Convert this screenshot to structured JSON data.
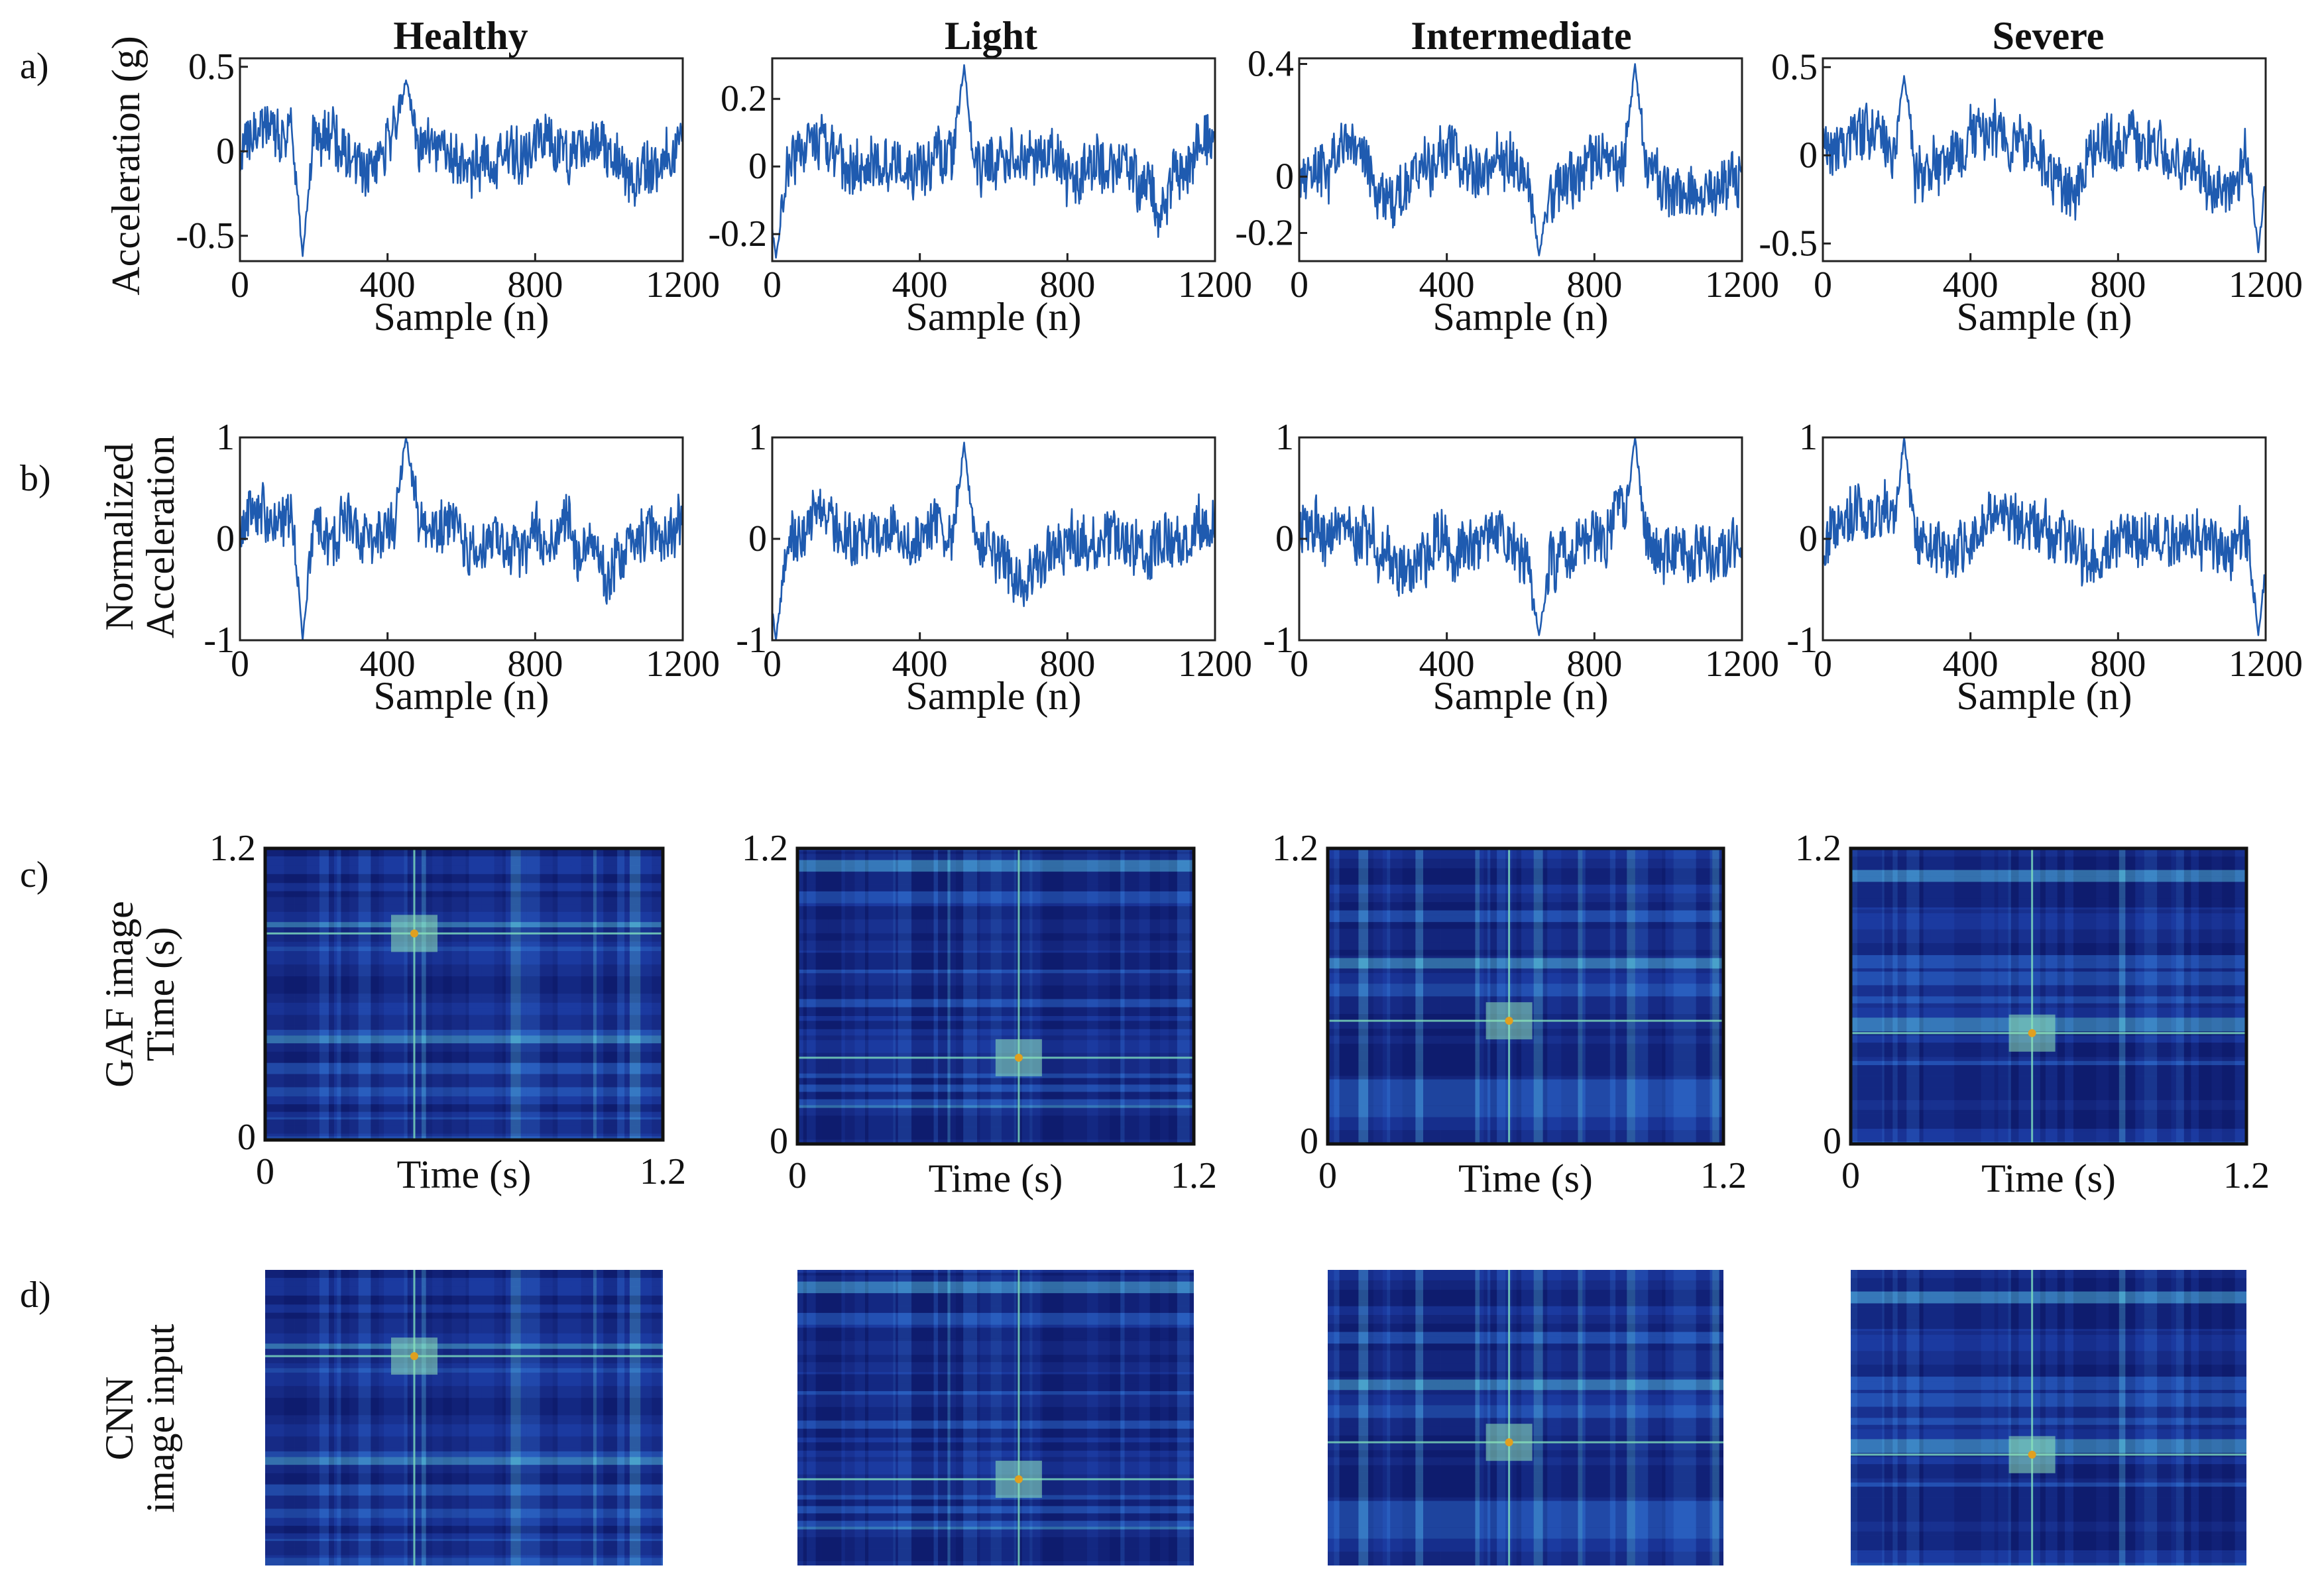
{
  "figure": {
    "row_labels": [
      "a)",
      "b)",
      "c)",
      "d)"
    ],
    "columns": [
      "Healthy",
      "Light",
      "Intermediate",
      "Severe"
    ],
    "ylabels": {
      "raw": "Acceleration (g)",
      "norm_line1": "Normalized",
      "norm_line2": "Acceleration",
      "gaf_line1": "GAF image",
      "gaf_line2": "Time (s)",
      "cnn_line1": "CNN",
      "cnn_line2": "image input"
    },
    "xlabels": {
      "sample": "Sample (n)",
      "time": "Time (s)"
    }
  },
  "colors": {
    "signal": "#1f5bb0",
    "colormap_low": "#0a1466",
    "colormap_mid": "#2a6fd6",
    "colormap_high": "#7fe0c0",
    "hotspot": "#e0a020"
  },
  "chart_data": [
    {
      "type": "line",
      "row": "a",
      "title": "Healthy",
      "xlabel": "Sample (n)",
      "ylabel": "Acceleration (g)",
      "xlim": [
        0,
        1200
      ],
      "ylim": [
        -0.65,
        0.55
      ],
      "xticks": [
        "0",
        "400",
        "800",
        "1200"
      ],
      "yticks": [
        "0.5",
        "0",
        "-0.5"
      ],
      "ytick_values": [
        0.5,
        0,
        -0.5
      ],
      "n_samples": 1200,
      "features": [
        {
          "at": 170,
          "value": -0.62
        },
        {
          "at": 450,
          "value": 0.42
        }
      ]
    },
    {
      "type": "line",
      "row": "a",
      "title": "Light",
      "xlabel": "Sample (n)",
      "ylabel": "",
      "xlim": [
        0,
        1200
      ],
      "ylim": [
        -0.28,
        0.32
      ],
      "xticks": [
        "0",
        "400",
        "800",
        "1200"
      ],
      "yticks": [
        "0.2",
        "0",
        "-0.2"
      ],
      "ytick_values": [
        0.2,
        0,
        -0.2
      ],
      "n_samples": 1200,
      "features": [
        {
          "at": 10,
          "value": -0.27
        },
        {
          "at": 520,
          "value": 0.3
        }
      ]
    },
    {
      "type": "line",
      "row": "a",
      "title": "Intermediate",
      "xlabel": "Sample (n)",
      "ylabel": "",
      "xlim": [
        0,
        1200
      ],
      "ylim": [
        -0.3,
        0.42
      ],
      "xticks": [
        "0",
        "400",
        "800",
        "1200"
      ],
      "yticks": [
        "0.4",
        "0",
        "-0.2"
      ],
      "ytick_values": [
        0.4,
        0,
        -0.2
      ],
      "n_samples": 1200,
      "features": [
        {
          "at": 910,
          "value": 0.4
        },
        {
          "at": 650,
          "value": -0.28
        }
      ]
    },
    {
      "type": "line",
      "row": "a",
      "title": "Severe",
      "xlabel": "Sample (n)",
      "ylabel": "",
      "xlim": [
        0,
        1200
      ],
      "ylim": [
        -0.6,
        0.55
      ],
      "xticks": [
        "0",
        "400",
        "800",
        "1200"
      ],
      "yticks": [
        "0.5",
        "0",
        "-0.5"
      ],
      "ytick_values": [
        0.5,
        0,
        -0.5
      ],
      "n_samples": 1200,
      "features": [
        {
          "at": 220,
          "value": 0.45
        },
        {
          "at": 1180,
          "value": -0.55
        }
      ]
    },
    {
      "type": "line",
      "row": "b",
      "title": "Healthy",
      "xlabel": "Sample (n)",
      "ylabel": "Normalized Acceleration",
      "xlim": [
        0,
        1200
      ],
      "ylim": [
        -1,
        1
      ],
      "xticks": [
        "0",
        "400",
        "800",
        "1200"
      ],
      "yticks": [
        "1",
        "0",
        "-1"
      ],
      "ytick_values": [
        1,
        0,
        -1
      ],
      "n_samples": 1200,
      "features": [
        {
          "at": 170,
          "value": -1
        },
        {
          "at": 450,
          "value": 1
        }
      ]
    },
    {
      "type": "line",
      "row": "b",
      "title": "Light",
      "xlabel": "Sample (n)",
      "ylabel": "",
      "xlim": [
        0,
        1200
      ],
      "ylim": [
        -1,
        1
      ],
      "xticks": [
        "0",
        "400",
        "800",
        "1200"
      ],
      "yticks": [
        "1",
        "0",
        "-1"
      ],
      "ytick_values": [
        1,
        0,
        -1
      ],
      "n_samples": 1200,
      "features": [
        {
          "at": 10,
          "value": -1
        },
        {
          "at": 520,
          "value": 0.95
        }
      ]
    },
    {
      "type": "line",
      "row": "b",
      "title": "Intermediate",
      "xlabel": "Sample (n)",
      "ylabel": "",
      "xlim": [
        0,
        1200
      ],
      "ylim": [
        -1,
        1
      ],
      "xticks": [
        "0",
        "400",
        "800",
        "1200"
      ],
      "yticks": [
        "1",
        "0",
        "-1"
      ],
      "ytick_values": [
        1,
        0,
        -1
      ],
      "n_samples": 1200,
      "features": [
        {
          "at": 910,
          "value": 1
        },
        {
          "at": 650,
          "value": -0.95
        }
      ]
    },
    {
      "type": "line",
      "row": "b",
      "title": "Severe",
      "xlabel": "Sample (n)",
      "ylabel": "",
      "xlim": [
        0,
        1200
      ],
      "ylim": [
        -1,
        1
      ],
      "xticks": [
        "0",
        "400",
        "800",
        "1200"
      ],
      "yticks": [
        "1",
        "0",
        "-1"
      ],
      "ytick_values": [
        1,
        0,
        -1
      ],
      "n_samples": 1200,
      "features": [
        {
          "at": 220,
          "value": 1
        },
        {
          "at": 1180,
          "value": -0.95
        }
      ]
    },
    {
      "type": "heatmap",
      "row": "c",
      "title": "Healthy",
      "xlabel": "Time (s)",
      "ylabel": "Time (s)",
      "xlim": [
        0,
        1.2
      ],
      "ylim": [
        0,
        1.2
      ],
      "xticks": [
        "0",
        "1.2"
      ],
      "yticks": [
        "1.2",
        "0"
      ],
      "hotspots": [
        {
          "t": 0.45,
          "s": 0.85
        }
      ]
    },
    {
      "type": "heatmap",
      "row": "c",
      "title": "Light",
      "xlabel": "Time (s)",
      "ylabel": "",
      "xlim": [
        0,
        1.2
      ],
      "ylim": [
        0,
        1.2
      ],
      "xticks": [
        "0",
        "1.2"
      ],
      "yticks": [
        "1.2",
        "0"
      ],
      "hotspots": [
        {
          "t": 0.67,
          "s": 0.35
        }
      ]
    },
    {
      "type": "heatmap",
      "row": "c",
      "title": "Intermediate",
      "xlabel": "Time (s)",
      "ylabel": "",
      "xlim": [
        0,
        1.2
      ],
      "ylim": [
        0,
        1.2
      ],
      "xticks": [
        "0",
        "1.2"
      ],
      "yticks": [
        "1.2",
        "0"
      ],
      "hotspots": [
        {
          "t": 0.55,
          "s": 0.5
        }
      ]
    },
    {
      "type": "heatmap",
      "row": "c",
      "title": "Severe",
      "xlabel": "Time (s)",
      "ylabel": "",
      "xlim": [
        0,
        1.2
      ],
      "ylim": [
        0,
        1.2
      ],
      "xticks": [
        "0",
        "1.2"
      ],
      "yticks": [
        "1.2",
        "0"
      ],
      "hotspots": [
        {
          "t": 0.55,
          "s": 0.45
        }
      ]
    },
    {
      "type": "heatmap",
      "row": "d",
      "title": "Healthy",
      "source": "GAF image (unlabeled)"
    },
    {
      "type": "heatmap",
      "row": "d",
      "title": "Light",
      "source": "GAF image (unlabeled)"
    },
    {
      "type": "heatmap",
      "row": "d",
      "title": "Intermediate",
      "source": "GAF image (unlabeled)"
    },
    {
      "type": "heatmap",
      "row": "d",
      "title": "Severe",
      "source": "GAF image (unlabeled)"
    }
  ]
}
